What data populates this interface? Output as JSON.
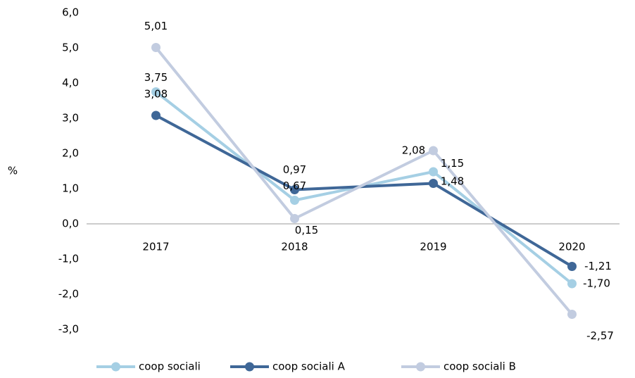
{
  "chart_data": {
    "type": "line",
    "y_label": "%",
    "categories": [
      "2017",
      "2018",
      "2019",
      "2020"
    ],
    "series": [
      {
        "name": "coop sociali",
        "color": "#a5cfe4",
        "values": [
          3.75,
          0.67,
          1.48,
          -1.7
        ],
        "value_labels": [
          "3,75",
          "0,67",
          "1,48",
          "-1,70"
        ]
      },
      {
        "name": "coop sociali A",
        "color": "#3f6797",
        "values": [
          3.08,
          0.97,
          1.15,
          -1.21
        ],
        "value_labels": [
          "3,08",
          "0,97",
          "1,15",
          "-1,21"
        ]
      },
      {
        "name": "coop sociali B",
        "color": "#c2cce0",
        "values": [
          5.01,
          0.15,
          2.08,
          -2.57
        ],
        "value_labels": [
          "5,01",
          "0,15",
          "2,08",
          "-2,57"
        ]
      }
    ],
    "ylim": [
      -3,
      6
    ],
    "yticks": [
      {
        "value": 6,
        "label": "6,0"
      },
      {
        "value": 5,
        "label": "5,0"
      },
      {
        "value": 4,
        "label": "4,0"
      },
      {
        "value": 3,
        "label": "3,0"
      },
      {
        "value": 2,
        "label": "2,0"
      },
      {
        "value": 1,
        "label": "1,0"
      },
      {
        "value": 0,
        "label": "0,0"
      },
      {
        "value": -1,
        "label": "-1,0"
      },
      {
        "value": -2,
        "label": "-2,0"
      },
      {
        "value": -3,
        "label": "-3,0"
      }
    ],
    "legend": "bottom"
  }
}
